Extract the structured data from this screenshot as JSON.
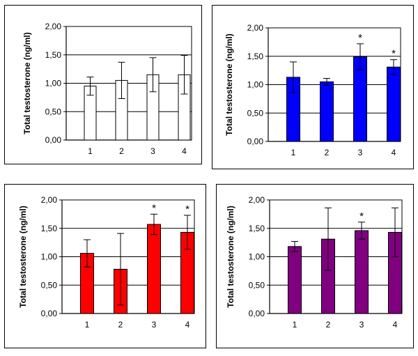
{
  "chart_data": [
    {
      "type": "bar",
      "ylabel": "Total testosterone (ng/ml)",
      "categories": [
        "1",
        "2",
        "3",
        "4"
      ],
      "yticks": [
        "0,00",
        "0,50",
        "1,00",
        "1,50",
        "2,00"
      ],
      "ylim": [
        0,
        2
      ],
      "grid": true,
      "color": "#ffffff",
      "values": [
        0.95,
        1.05,
        1.15,
        1.15
      ],
      "errors": [
        0.16,
        0.32,
        0.3,
        0.34
      ],
      "significance": [
        "",
        "",
        "",
        ""
      ]
    },
    {
      "type": "bar",
      "ylabel": "Total testosterone (ng/ml)",
      "categories": [
        "1",
        "2",
        "3",
        "4"
      ],
      "yticks": [
        "0,00",
        "0,50",
        "1,00",
        "1,50",
        "2,00"
      ],
      "ylim": [
        0,
        2
      ],
      "grid": true,
      "color": "#0000ff",
      "values": [
        1.13,
        1.05,
        1.49,
        1.31
      ],
      "errors": [
        0.27,
        0.06,
        0.23,
        0.13
      ],
      "significance": [
        "",
        "",
        "*",
        "*"
      ]
    },
    {
      "type": "bar",
      "ylabel": "Total testosterone (ng/ml)",
      "categories": [
        "1",
        "2",
        "3",
        "4"
      ],
      "yticks": [
        "0,00",
        "0,50",
        "1,00",
        "1,50",
        "2,00"
      ],
      "ylim": [
        0,
        2
      ],
      "grid": true,
      "color": "#ff0000",
      "values": [
        1.06,
        0.78,
        1.57,
        1.43
      ],
      "errors": [
        0.24,
        0.63,
        0.18,
        0.3
      ],
      "significance": [
        "",
        "",
        "*",
        "*"
      ]
    },
    {
      "type": "bar",
      "ylabel": "Total testosterone (ng/ml)",
      "categories": [
        "1",
        "2",
        "3",
        "4"
      ],
      "yticks": [
        "0,00",
        "0,50",
        "1,00",
        "1,50",
        "2,00"
      ],
      "ylim": [
        0,
        2
      ],
      "grid": true,
      "color": "#800080",
      "values": [
        1.18,
        1.31,
        1.46,
        1.43
      ],
      "errors": [
        0.09,
        0.55,
        0.15,
        0.43
      ],
      "significance": [
        "",
        "",
        "*",
        ""
      ]
    }
  ]
}
